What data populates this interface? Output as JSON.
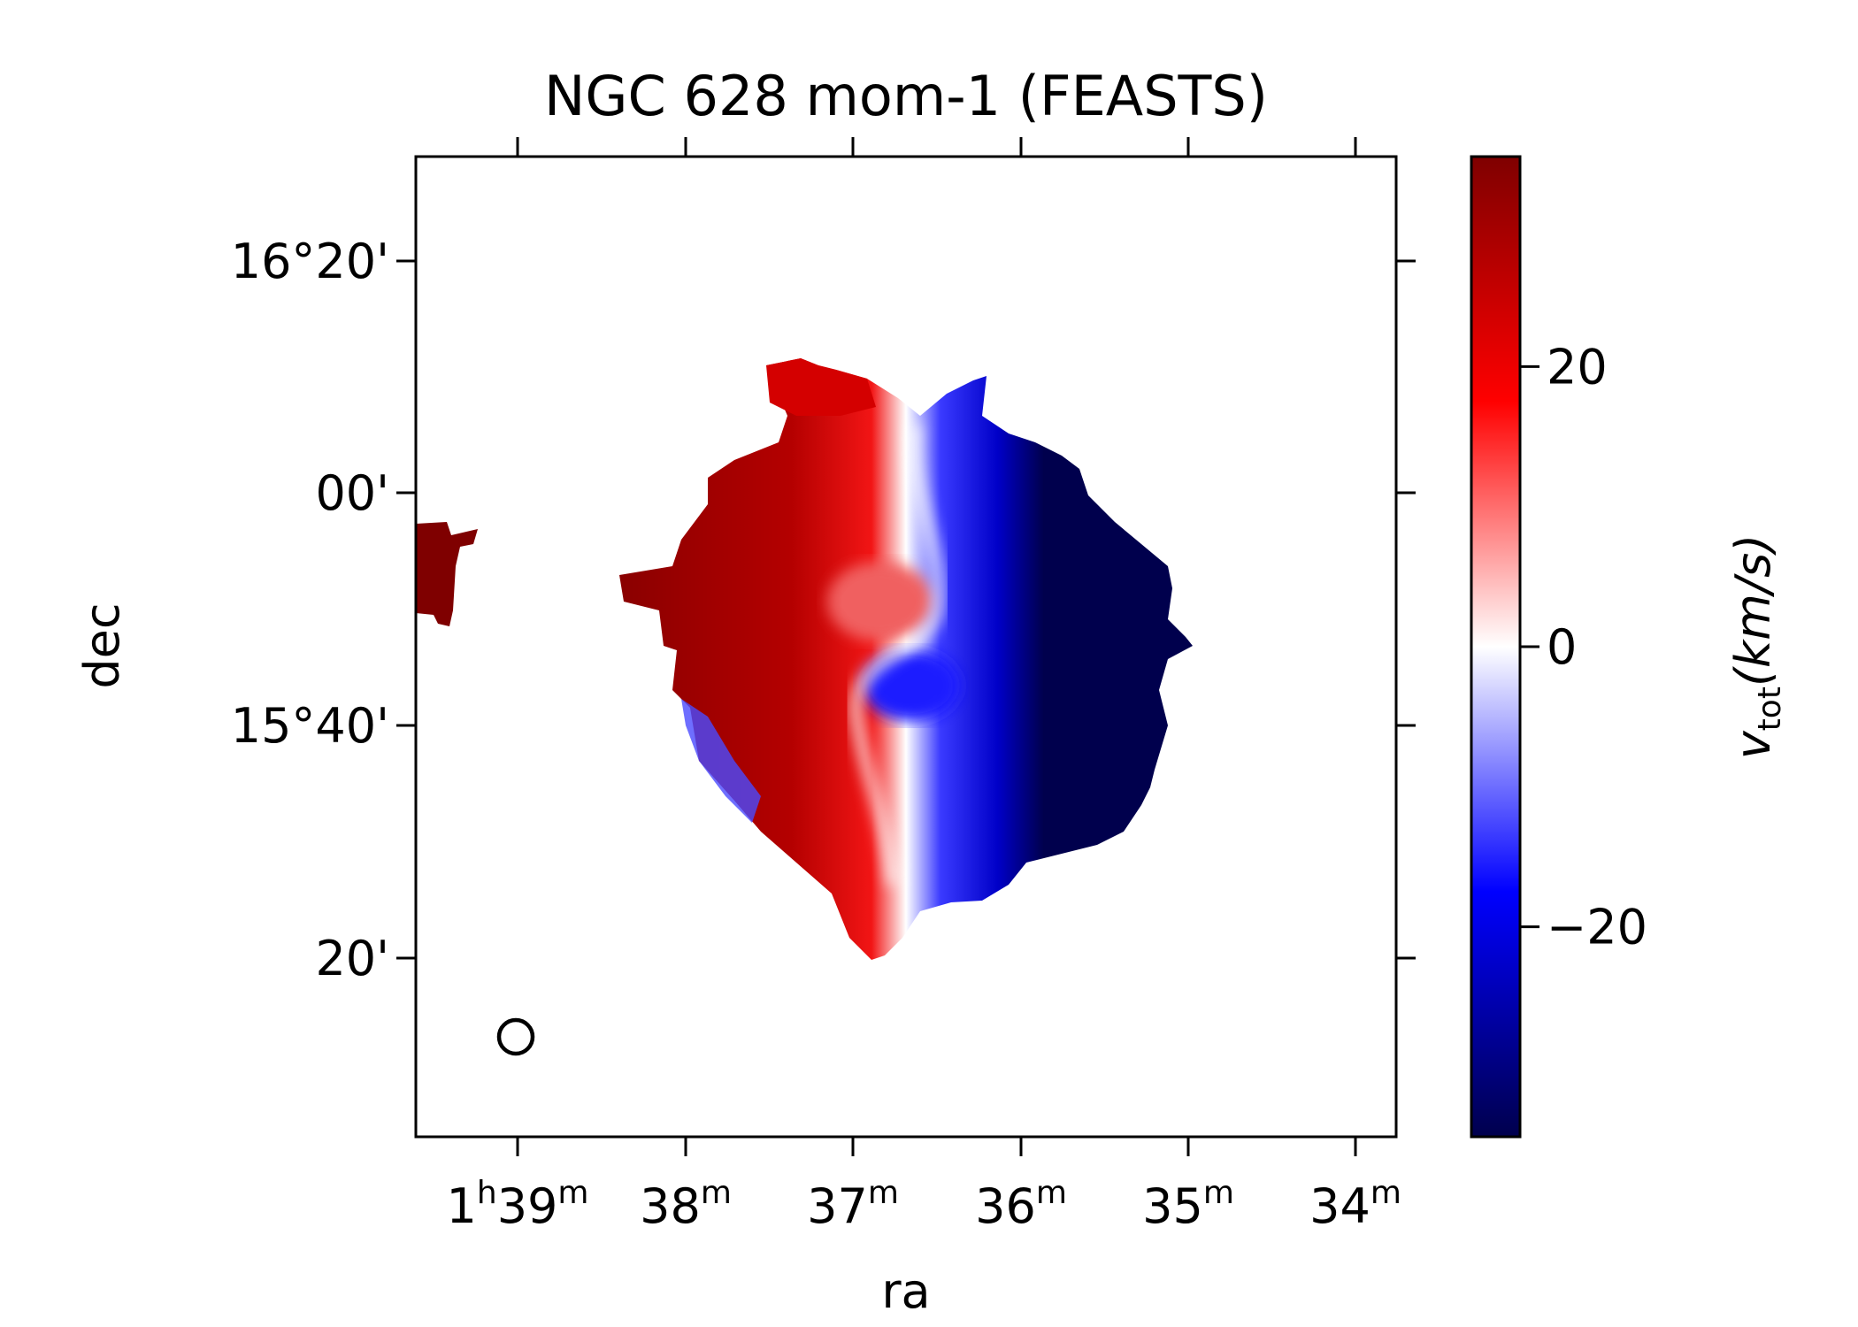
{
  "chart_data": {
    "type": "heatmap",
    "title": "NGC 628 mom-1 (FEASTS)",
    "xlabel": "ra",
    "ylabel": "dec",
    "x_ticks": [
      {
        "main": "1",
        "sup1": "h",
        "mid": "39",
        "sup2": "m"
      },
      {
        "main": "38",
        "sup1": "m"
      },
      {
        "main": "37",
        "sup1": "m"
      },
      {
        "main": "36",
        "sup1": "m"
      },
      {
        "main": "35",
        "sup1": "m"
      },
      {
        "main": "34",
        "sup1": "m"
      }
    ],
    "y_ticks": [
      "16°20'",
      "00'",
      "15°40'",
      "20'"
    ],
    "colorbar": {
      "label_var": "v",
      "label_sub": "tot",
      "label_unit": "(km/s)",
      "range": [
        -35,
        35
      ],
      "ticks": [
        20,
        0,
        -20
      ],
      "tick_labels": [
        "20",
        "0",
        "−20"
      ],
      "colormap": "seismic",
      "colors": [
        "#00004d",
        "#0000ff",
        "#ffffff",
        "#ff0000",
        "#7f0000"
      ]
    },
    "beam_marker": "circle",
    "velocity_field": {
      "left_side": "positive (red, up to ~+35 km/s)",
      "right_side": "negative (blue, down to ~-35 km/s)"
    }
  }
}
